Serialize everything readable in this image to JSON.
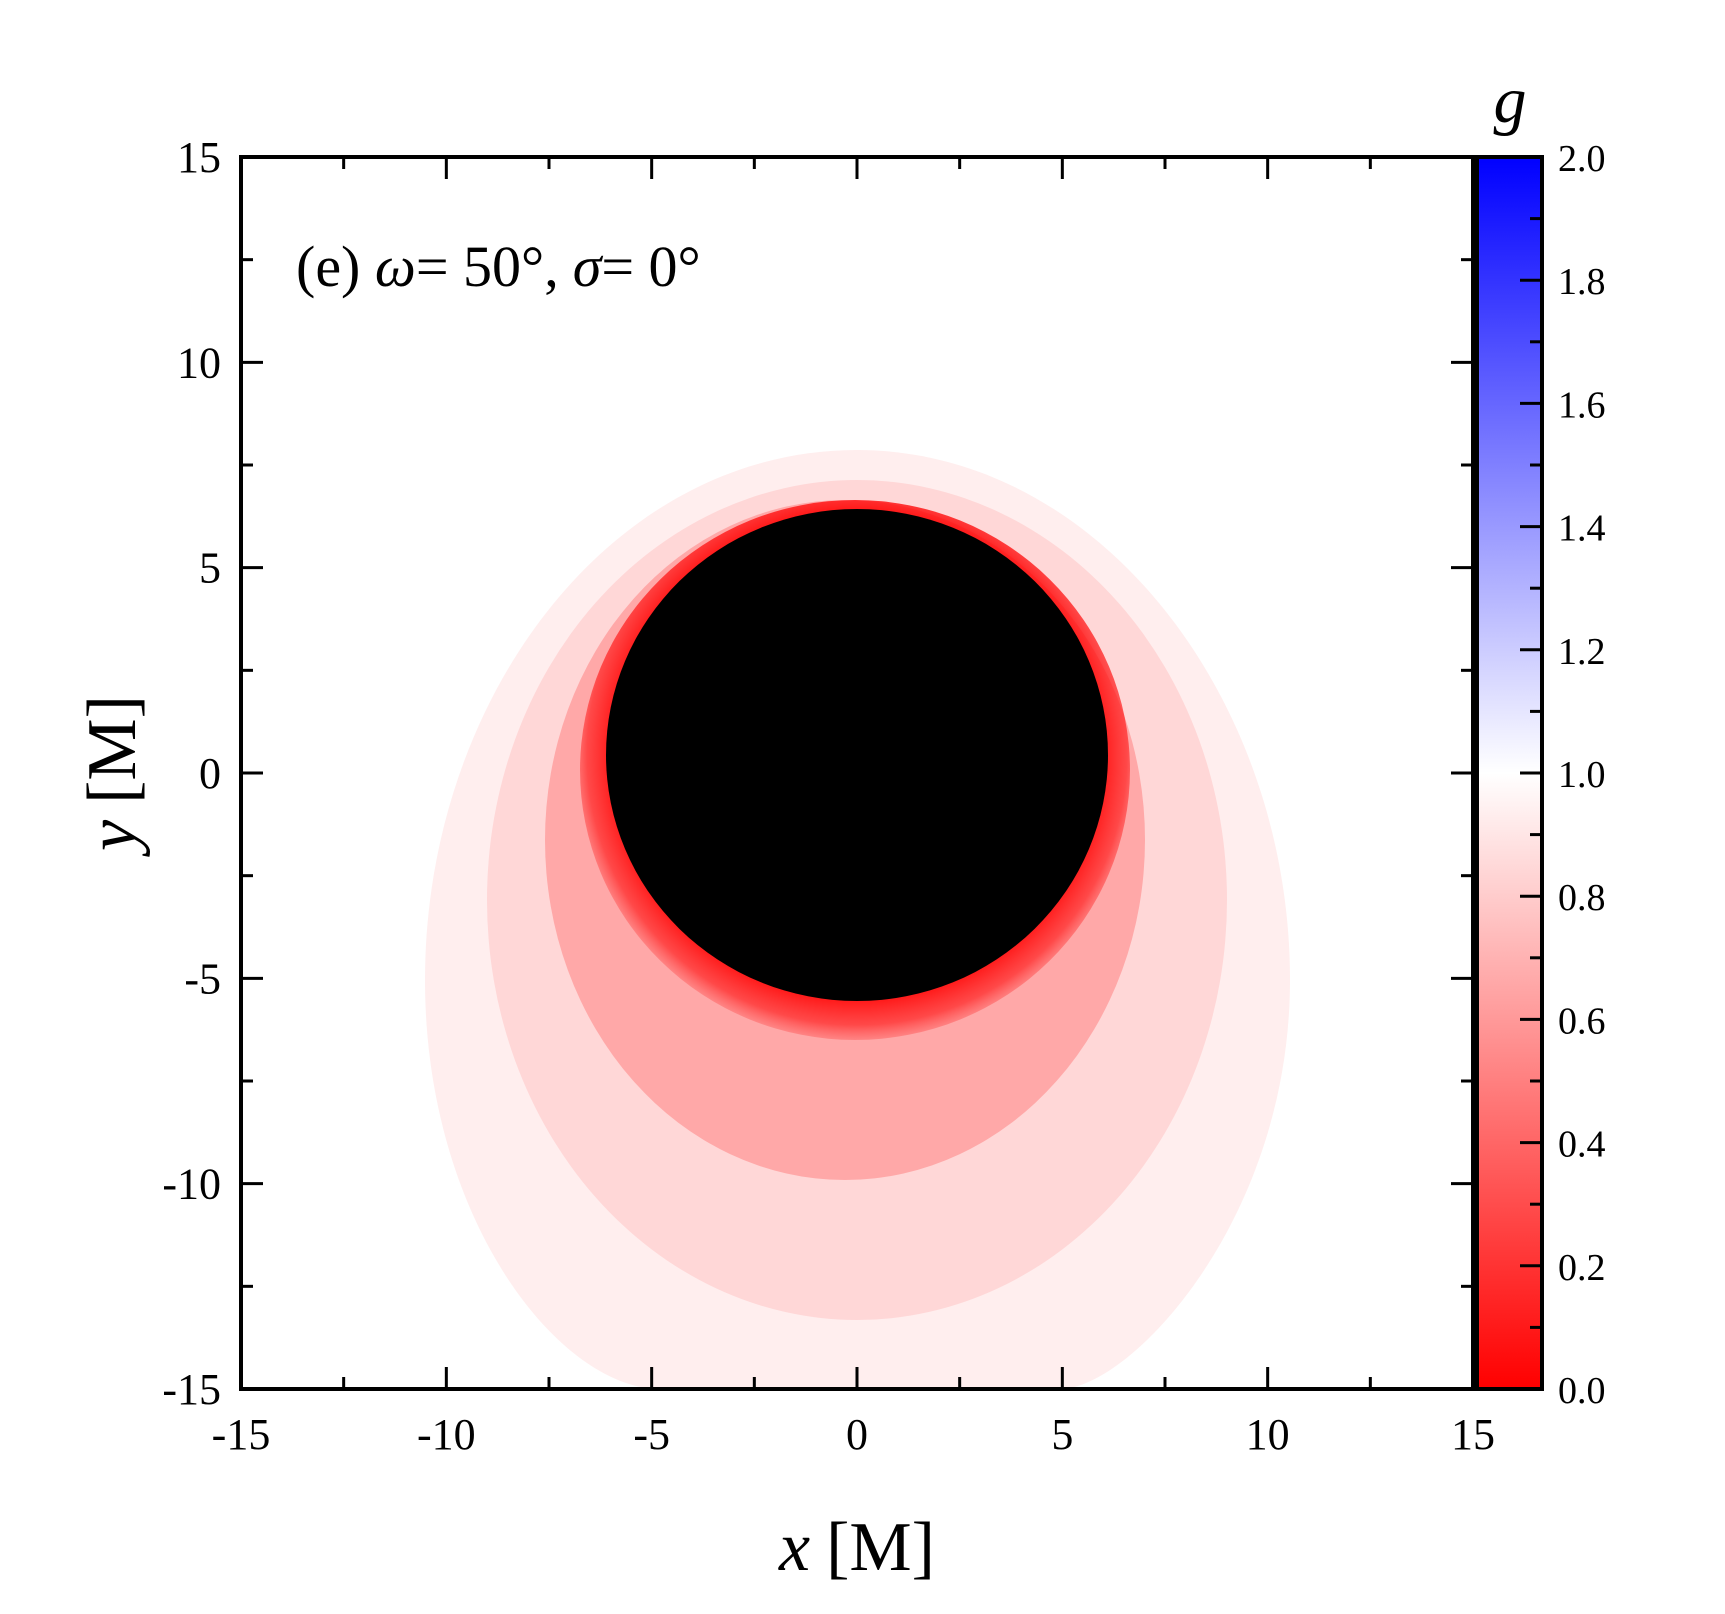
{
  "chart_data": {
    "type": "heatmap",
    "panel_label": "(e) ω = 50°, σ = 0°",
    "panel_label_parts": {
      "prefix": "(e) ",
      "omega_symbol": "ω",
      "omega_value": "= 50°,",
      "sigma_symbol": "σ",
      "sigma_value": "= 0°"
    },
    "xlabel": {
      "symbol": "x",
      "unit": "[M]"
    },
    "ylabel": {
      "symbol": "y",
      "unit": "[M]"
    },
    "xlim": [
      -15,
      15
    ],
    "ylim": [
      -15,
      15
    ],
    "x_ticks": [
      -15,
      -10,
      -5,
      0,
      5,
      10,
      15
    ],
    "y_ticks": [
      -15,
      -10,
      -5,
      0,
      5,
      10,
      15
    ],
    "minor_tick_step": 2.5,
    "colorbar": {
      "label": "g",
      "range": [
        0.0,
        2.0
      ],
      "ticks": [
        "0.0",
        "0.2",
        "0.4",
        "0.6",
        "0.8",
        "1.0",
        "1.2",
        "1.4",
        "1.6",
        "1.8",
        "2.0"
      ],
      "colors": {
        "0.0": "#ff0000",
        "1.0": "#ffffff",
        "2.0": "#0000ff"
      }
    },
    "shadow": {
      "center": [
        0,
        0.4
      ],
      "radius_x": 6.1,
      "radius_y": 6.0,
      "color": "#000000"
    },
    "redshift_halo": {
      "center": [
        0,
        -3.8
      ],
      "extent_x": [
        -10.5,
        10.5
      ],
      "extent_y": [
        -15,
        7.8
      ],
      "min_g": 0.0,
      "outer_g": 0.95
    },
    "grid": false
  }
}
